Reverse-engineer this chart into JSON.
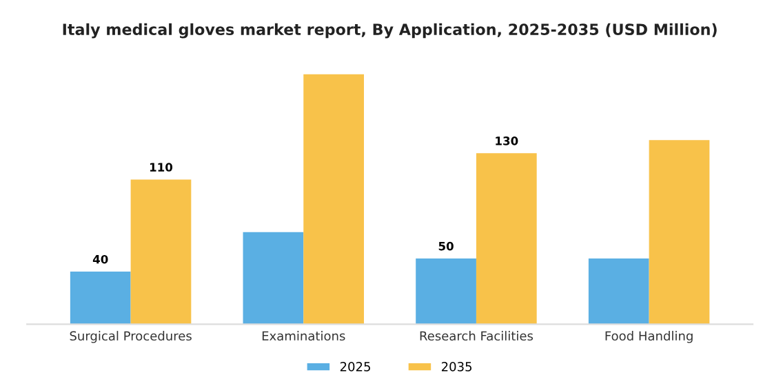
{
  "chart_data": {
    "type": "bar",
    "title": "Italy medical gloves market report, By Application, 2025-2035 (USD Million)",
    "categories": [
      "Surgical Procedures",
      "Examinations",
      "Research Facilities",
      "Food Handling"
    ],
    "series": [
      {
        "name": "2025",
        "color": "#5aafe3",
        "values": [
          40,
          70,
          50,
          50
        ],
        "value_labels": [
          "40",
          null,
          "50",
          null
        ]
      },
      {
        "name": "2035",
        "color": "#f8c24a",
        "values": [
          110,
          190,
          130,
          140
        ],
        "value_labels": [
          "110",
          null,
          "130",
          null
        ]
      }
    ],
    "tick_labels": "x",
    "legend": "bottom",
    "grid": false
  }
}
